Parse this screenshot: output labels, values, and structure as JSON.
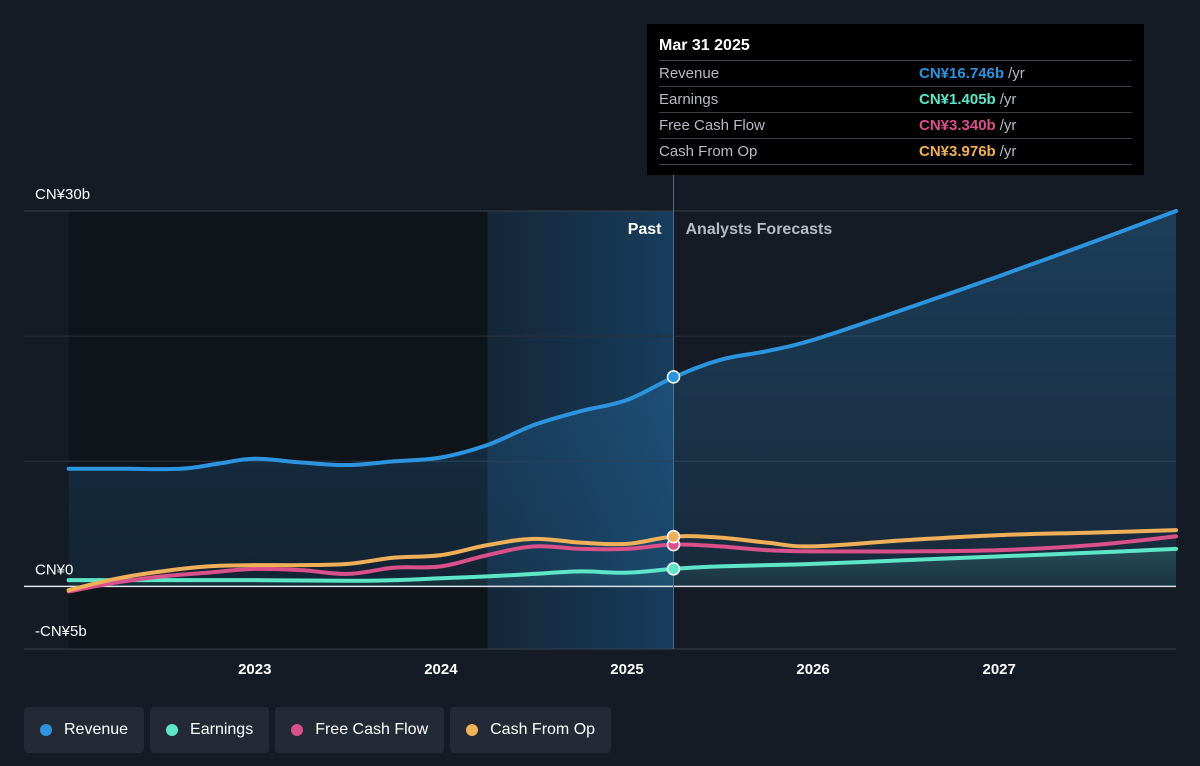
{
  "tooltip": {
    "date": "Mar 31 2025",
    "unit": "/yr",
    "rows": [
      {
        "label": "Revenue",
        "value": "CN¥16.746b",
        "color": "#2d94e0"
      },
      {
        "label": "Earnings",
        "value": "CN¥1.405b",
        "color": "#5ee6c9"
      },
      {
        "label": "Free Cash Flow",
        "value": "CN¥3.340b",
        "color": "#d9508a"
      },
      {
        "label": "Cash From Op",
        "value": "CN¥3.976b",
        "color": "#f0b05a"
      }
    ]
  },
  "legend": [
    {
      "label": "Revenue",
      "color": "#2d94e0"
    },
    {
      "label": "Earnings",
      "color": "#5ee6c9"
    },
    {
      "label": "Free Cash Flow",
      "color": "#d9508a"
    },
    {
      "label": "Cash From Op",
      "color": "#f0b05a"
    }
  ],
  "chart_data": {
    "type": "line",
    "ylim": [
      -5,
      30
    ],
    "y_tick_labels": [
      {
        "value": 30,
        "label": "CN¥30b"
      },
      {
        "value": 0,
        "label": "CN¥0"
      },
      {
        "value": -5,
        "label": "-CN¥5b"
      }
    ],
    "x_tick_labels": [
      {
        "value": 2023,
        "label": "2023"
      },
      {
        "value": 2024,
        "label": "2024"
      },
      {
        "value": 2025,
        "label": "2025"
      },
      {
        "value": 2026,
        "label": "2026"
      },
      {
        "value": 2027,
        "label": "2027"
      }
    ],
    "xlim": [
      2021.76,
      2027.95
    ],
    "past_label": "Past",
    "forecast_label": "Analysts Forecasts",
    "divider_x": 2025.25,
    "highlight_start_x": 2024.25,
    "series": [
      {
        "name": "Revenue",
        "color": "#2d94e0",
        "fill": true,
        "x": [
          2022.0,
          2022.3,
          2022.6,
          2022.8,
          2023.0,
          2023.25,
          2023.5,
          2023.75,
          2024.0,
          2024.25,
          2024.5,
          2024.75,
          2025.0,
          2025.25,
          2025.5,
          2025.75,
          2026.0,
          2026.5,
          2027.0,
          2027.5,
          2027.95
        ],
        "y": [
          9.4,
          9.4,
          9.4,
          9.8,
          10.2,
          9.9,
          9.7,
          10.0,
          10.3,
          11.3,
          12.9,
          14.0,
          14.9,
          16.7,
          18.1,
          18.8,
          19.7,
          22.2,
          24.8,
          27.5,
          30.0
        ]
      },
      {
        "name": "Earnings",
        "color": "#5ee6c9",
        "fill": true,
        "x": [
          2022.0,
          2022.5,
          2023.0,
          2023.5,
          2023.75,
          2024.0,
          2024.25,
          2024.5,
          2024.75,
          2025.0,
          2025.25,
          2025.5,
          2026.0,
          2026.5,
          2027.0,
          2027.5,
          2027.95
        ],
        "y": [
          0.5,
          0.5,
          0.5,
          0.45,
          0.5,
          0.65,
          0.8,
          1.0,
          1.2,
          1.1,
          1.4,
          1.6,
          1.8,
          2.1,
          2.4,
          2.7,
          3.0
        ]
      },
      {
        "name": "Free Cash Flow",
        "color": "#d9508a",
        "fill": false,
        "x": [
          2022.0,
          2022.25,
          2022.5,
          2022.75,
          2023.0,
          2023.25,
          2023.5,
          2023.75,
          2024.0,
          2024.25,
          2024.5,
          2024.75,
          2025.0,
          2025.25,
          2025.5,
          2025.75,
          2026.0,
          2026.5,
          2027.0,
          2027.5,
          2027.95
        ],
        "y": [
          -0.4,
          0.3,
          0.8,
          1.1,
          1.4,
          1.3,
          1.0,
          1.5,
          1.6,
          2.5,
          3.2,
          3.0,
          3.0,
          3.34,
          3.2,
          2.9,
          2.8,
          2.8,
          2.9,
          3.3,
          4.0
        ]
      },
      {
        "name": "Cash From Op",
        "color": "#f0b05a",
        "fill": false,
        "x": [
          2022.0,
          2022.25,
          2022.5,
          2022.75,
          2023.0,
          2023.25,
          2023.5,
          2023.75,
          2024.0,
          2024.25,
          2024.5,
          2024.75,
          2025.0,
          2025.25,
          2025.5,
          2025.75,
          2026.0,
          2026.5,
          2027.0,
          2027.5,
          2027.95
        ],
        "y": [
          -0.3,
          0.6,
          1.2,
          1.6,
          1.7,
          1.7,
          1.8,
          2.3,
          2.5,
          3.3,
          3.8,
          3.5,
          3.4,
          3.976,
          3.9,
          3.5,
          3.2,
          3.7,
          4.1,
          4.3,
          4.5
        ]
      }
    ],
    "markers": [
      {
        "series": "Revenue",
        "x": 2025.25,
        "y": 16.746
      },
      {
        "series": "Earnings",
        "x": 2025.25,
        "y": 1.405
      },
      {
        "series": "Free Cash Flow",
        "x": 2025.25,
        "y": 3.34
      },
      {
        "series": "Cash From Op",
        "x": 2025.25,
        "y": 3.976
      }
    ]
  }
}
